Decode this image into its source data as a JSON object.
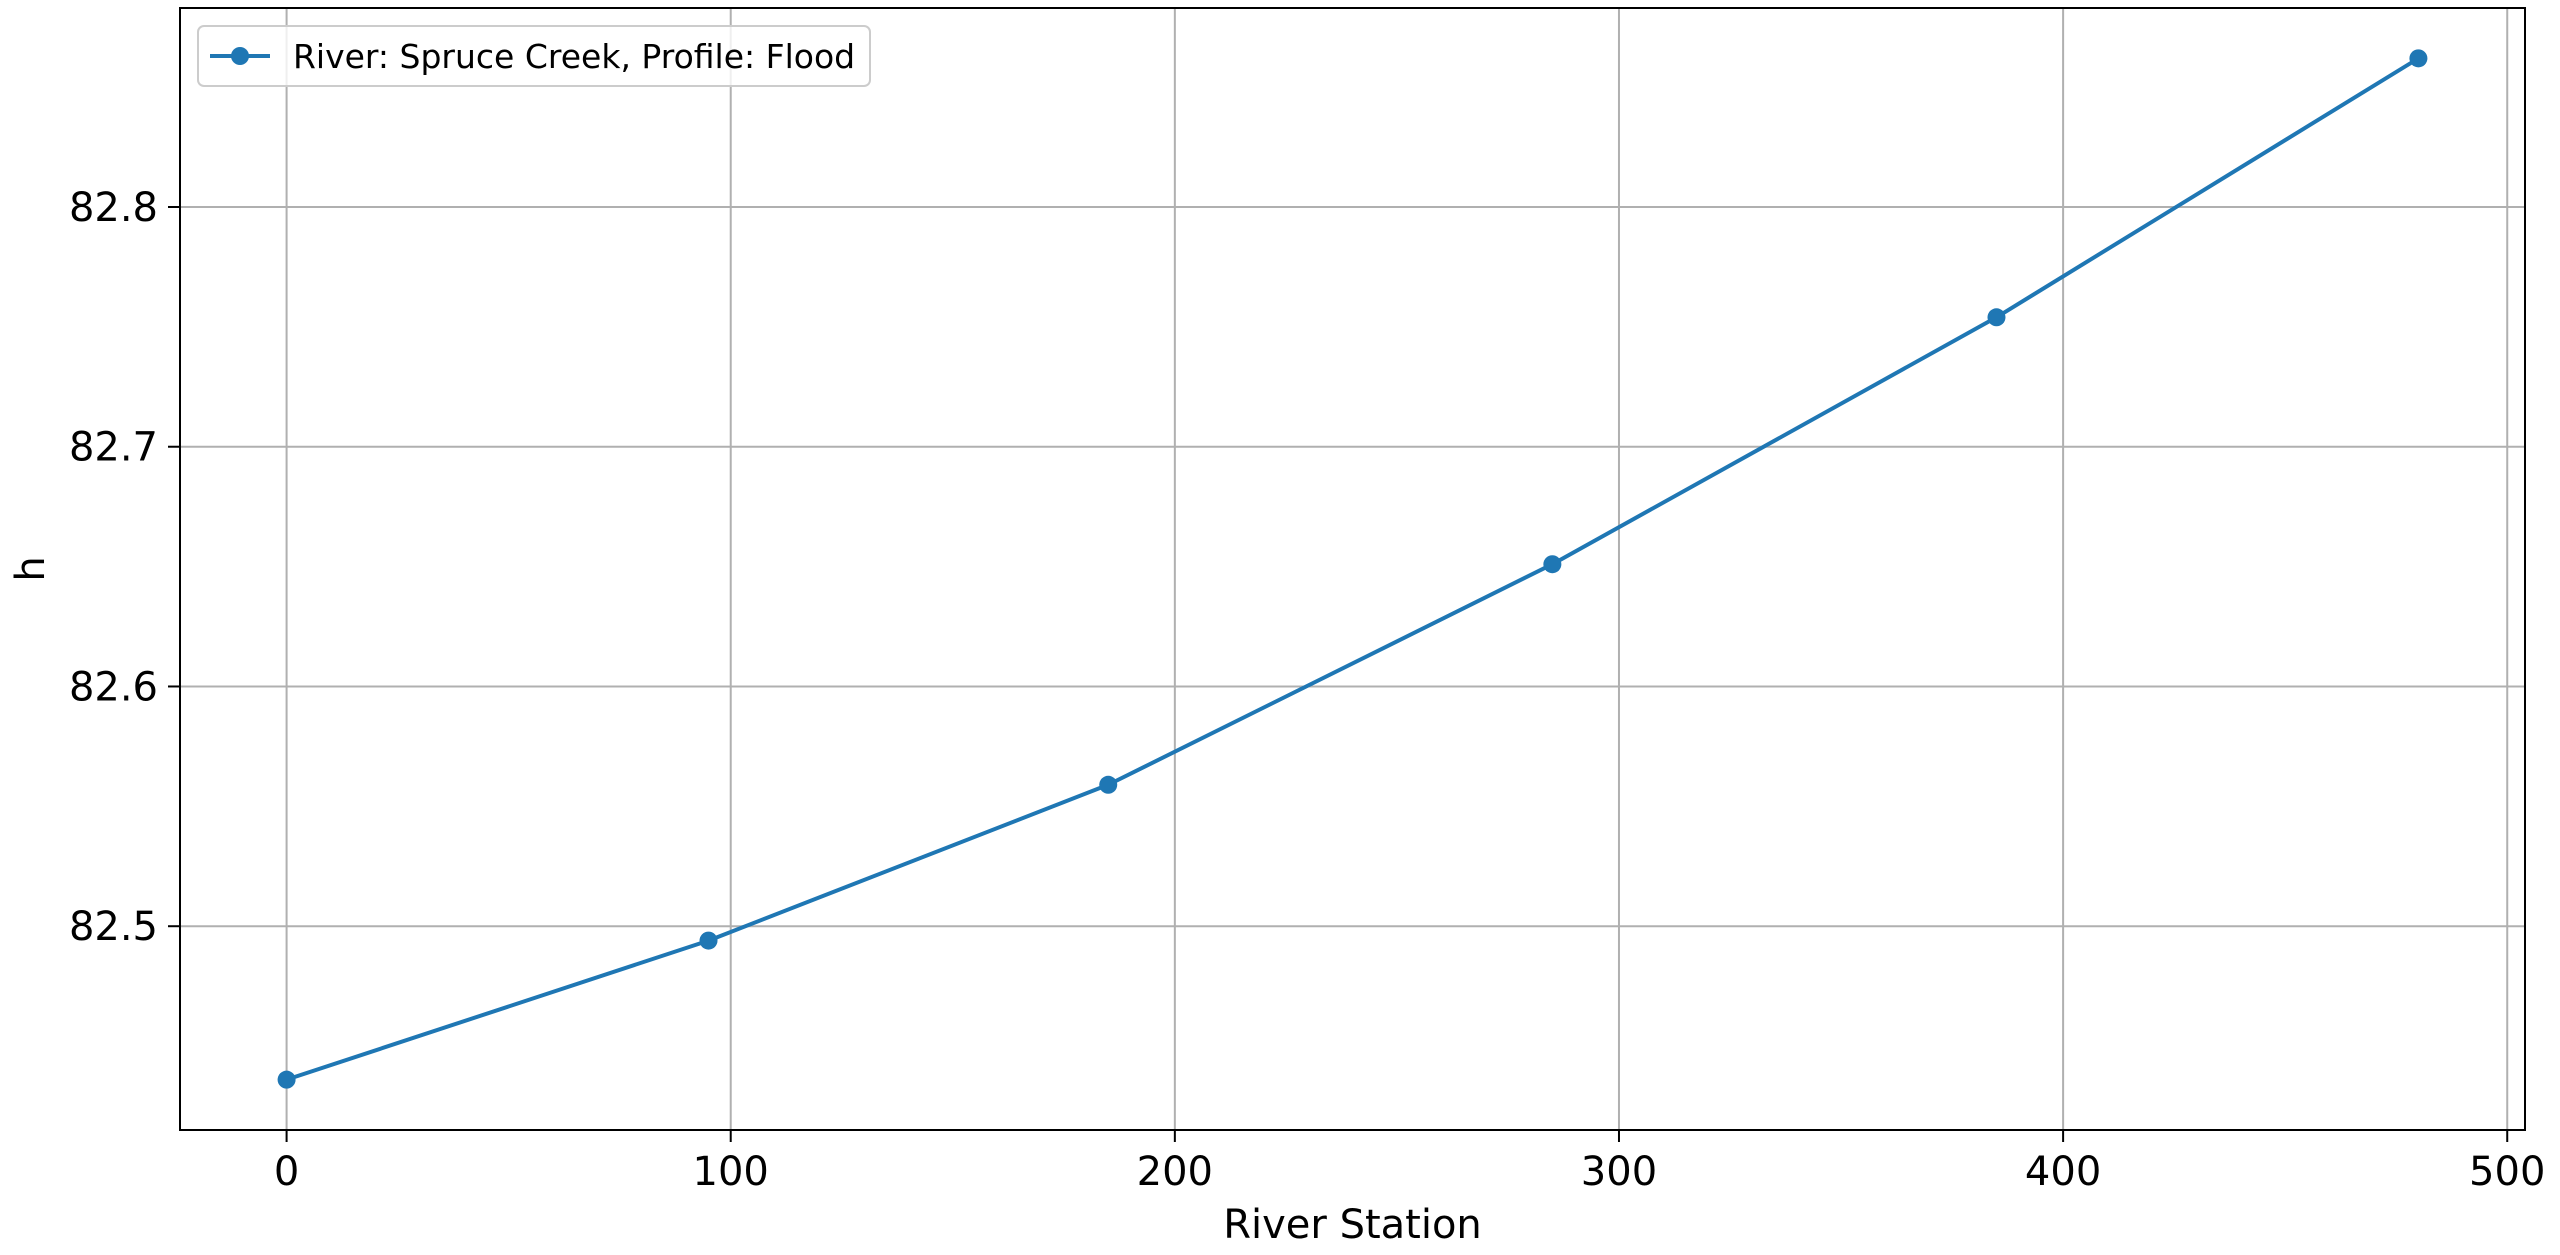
{
  "chart_data": {
    "type": "line",
    "title": "",
    "xlabel": "River Station",
    "ylabel": "h",
    "xlim": [
      -24,
      504
    ],
    "ylim": [
      82.415,
      82.883
    ],
    "xticks": [
      0,
      100,
      200,
      300,
      400,
      500
    ],
    "yticks": [
      82.5,
      82.6,
      82.7,
      82.8
    ],
    "xtick_labels": [
      "0",
      "100",
      "200",
      "300",
      "400",
      "500"
    ],
    "ytick_labels": [
      "82.5",
      "82.6",
      "82.7",
      "82.8"
    ],
    "grid": true,
    "legend_position": "top-left",
    "series": [
      {
        "name": "River: Spruce Creek, Profile: Flood",
        "color": "#1f77b4",
        "marker": "circle",
        "x": [
          0,
          95,
          185,
          285,
          385,
          480
        ],
        "y": [
          82.436,
          82.494,
          82.559,
          82.651,
          82.754,
          82.862
        ]
      }
    ]
  }
}
